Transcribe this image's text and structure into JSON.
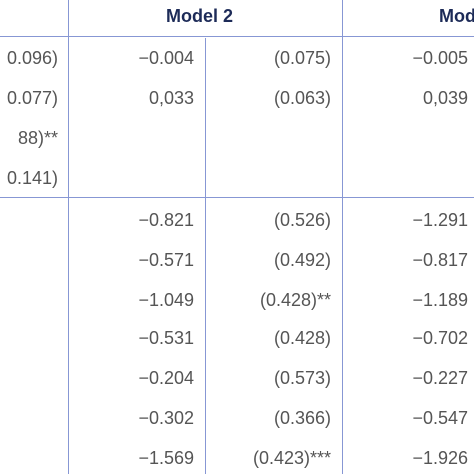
{
  "header": {
    "model_2": "Model 2",
    "model_3": "Mod"
  },
  "table": {
    "rows": [
      [
        "0.096)",
        "−0.004",
        "(0.075)",
        "−0.005"
      ],
      [
        "0.077)",
        "0,033",
        "(0.063)",
        "0,039"
      ],
      [
        "88)**",
        null,
        null,
        null
      ],
      [
        "0.141)",
        null,
        null,
        null
      ],
      [
        null,
        "−0.821",
        "(0.526)",
        "−1.291"
      ],
      [
        null,
        "−0.571",
        "(0.492)",
        "−0.817"
      ],
      [
        null,
        "−1.049",
        "(0.428)**",
        "−1.189"
      ],
      [
        null,
        "−0.531",
        "(0.428)",
        "−0.702"
      ],
      [
        null,
        "−0.204",
        "(0.573)",
        "−0.227"
      ],
      [
        null,
        "−0.302",
        "(0.366)",
        "−0.547"
      ],
      [
        null,
        "−1.569",
        "(0.423)***",
        "−1.926"
      ]
    ]
  }
}
